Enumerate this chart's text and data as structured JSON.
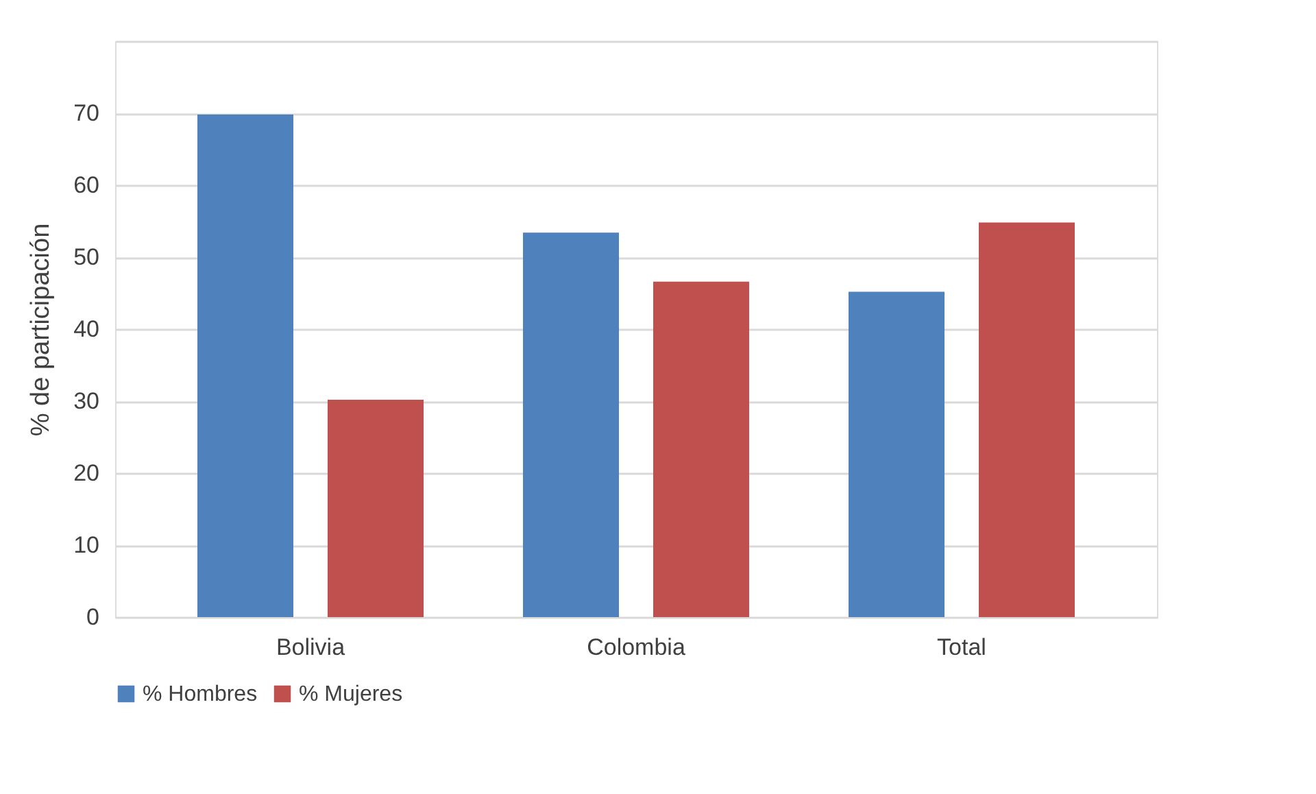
{
  "chart_data": {
    "type": "bar",
    "ylabel": "% de participación",
    "categories": [
      "Bolivia",
      "Colombia",
      "Total"
    ],
    "series": [
      {
        "name": "% Hombres",
        "color": "#4f81bd",
        "values": [
          69.8,
          53.4,
          45.2
        ]
      },
      {
        "name": "% Mujeres",
        "color": "#c0504d",
        "values": [
          30.2,
          46.6,
          54.8
        ]
      }
    ],
    "ylim": [
      0,
      80
    ],
    "yticks": [
      0,
      10,
      20,
      30,
      40,
      50,
      60,
      70,
      {
        "value": 80,
        "label": null
      }
    ],
    "grid": "y",
    "legend": "bottom"
  }
}
